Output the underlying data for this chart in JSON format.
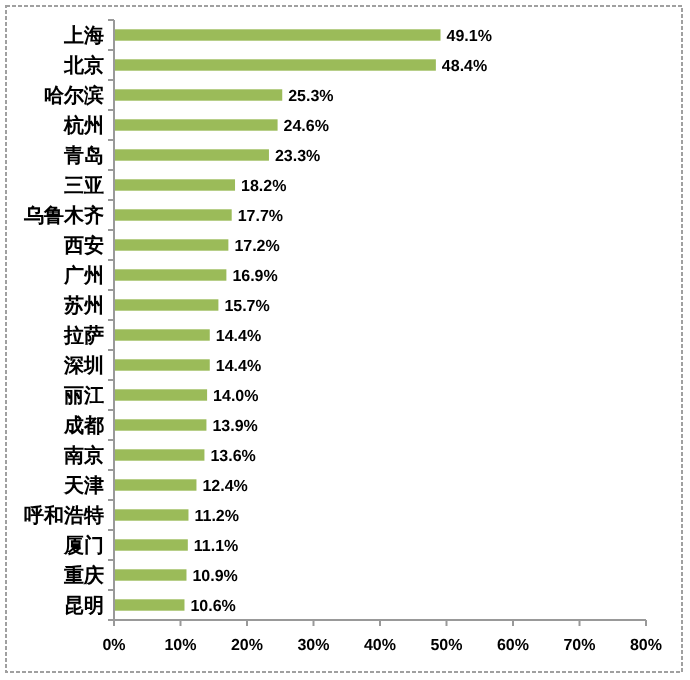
{
  "chart_data": {
    "type": "bar",
    "orientation": "horizontal",
    "categories": [
      "上海",
      "北京",
      "哈尔滨",
      "杭州",
      "青岛",
      "三亚",
      "乌鲁木齐",
      "西安",
      "广州",
      "苏州",
      "拉萨",
      "深圳",
      "丽江",
      "成都",
      "南京",
      "天津",
      "呼和浩特",
      "厦门",
      "重庆",
      "昆明"
    ],
    "values": [
      49.1,
      48.4,
      25.3,
      24.6,
      23.3,
      18.2,
      17.7,
      17.2,
      16.9,
      15.7,
      14.4,
      14.4,
      14.0,
      13.9,
      13.6,
      12.4,
      11.2,
      11.1,
      10.9,
      10.6
    ],
    "value_labels": [
      "49.1%",
      "48.4%",
      "25.3%",
      "24.6%",
      "23.3%",
      "18.2%",
      "17.7%",
      "17.2%",
      "16.9%",
      "15.7%",
      "14.4%",
      "14.4%",
      "14.0%",
      "13.9%",
      "13.6%",
      "12.4%",
      "11.2%",
      "11.1%",
      "10.9%",
      "10.6%"
    ],
    "color": "#9bbb59",
    "xlim": [
      0,
      80
    ],
    "xticks": [
      {
        "value": 0,
        "label": "0%"
      },
      {
        "value": 10,
        "label": "10%"
      },
      {
        "value": 20,
        "label": "20%"
      },
      {
        "value": 30,
        "label": "30%"
      },
      {
        "value": 40,
        "label": "40%"
      },
      {
        "value": 50,
        "label": "50%"
      },
      {
        "value": 60,
        "label": "60%"
      },
      {
        "value": 70,
        "label": "70%"
      },
      {
        "value": 80,
        "label": "80%"
      }
    ],
    "grid": false
  }
}
